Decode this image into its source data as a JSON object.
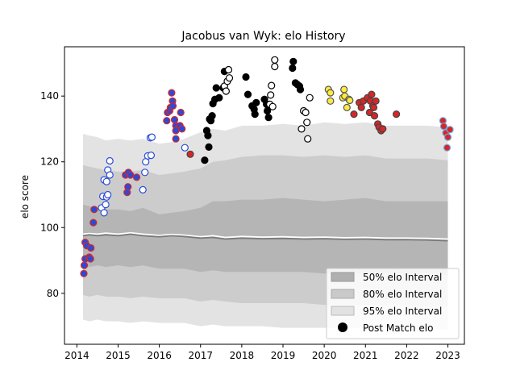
{
  "chart_data": {
    "type": "scatter",
    "title": "Jacobus van Wyk: elo History",
    "xlabel": "",
    "ylabel": "elo score",
    "xlim": [
      2013.7,
      2023.4
    ],
    "ylim": [
      64.5,
      155
    ],
    "xticks": [
      2014,
      2015,
      2016,
      2017,
      2018,
      2019,
      2020,
      2021,
      2022,
      2023
    ],
    "yticks": [
      80,
      100,
      120,
      140
    ],
    "grid": false,
    "legend_position": "lower-right",
    "legend": [
      {
        "label": "50% elo Interval",
        "color": "#b0b0b0"
      },
      {
        "label": "80% elo Interval",
        "color": "#c9c9c9"
      },
      {
        "label": "95% elo Interval",
        "color": "#e2e2e2"
      },
      {
        "label": "Post Match elo",
        "color": "#000000"
      }
    ],
    "bands": {
      "x": [
        2014.15,
        2014.3,
        2014.5,
        2014.7,
        2015.0,
        2015.3,
        2015.6,
        2016.0,
        2016.3,
        2016.6,
        2017.0,
        2017.3,
        2017.6,
        2018.0,
        2018.5,
        2019.0,
        2019.5,
        2020.0,
        2020.5,
        2021.0,
        2021.5,
        2022.0,
        2022.5,
        2023.0
      ],
      "p95_hi": [
        128.5,
        128,
        127.5,
        126.5,
        127,
        126.5,
        127,
        125.5,
        126,
        127,
        129,
        130,
        129.5,
        131,
        131,
        131.5,
        131,
        132,
        131.5,
        132,
        131,
        131,
        131,
        130.5
      ],
      "p80_hi": [
        119,
        118.5,
        118,
        117.5,
        117,
        117,
        117.5,
        116,
        116.5,
        117,
        118,
        120,
        120.5,
        121.5,
        122,
        122,
        121.5,
        122,
        121.5,
        122,
        121,
        121,
        121,
        120.5
      ],
      "p50_hi": [
        107,
        106.5,
        106,
        105.5,
        105.5,
        105,
        106,
        104,
        104.5,
        105,
        106,
        108,
        108,
        108.5,
        108.5,
        109,
        108.5,
        108,
        108.5,
        109,
        108,
        108,
        108,
        108
      ],
      "p50_lo": [
        88.5,
        88,
        88.5,
        88,
        88.5,
        88,
        88.5,
        87.5,
        87.5,
        87.5,
        86.5,
        87,
        86.5,
        86.5,
        86.5,
        86.5,
        86.5,
        86,
        86,
        86,
        86,
        86,
        86,
        85.5
      ],
      "p80_lo": [
        79.5,
        79,
        79.5,
        79,
        79,
        78.5,
        79,
        78.5,
        78.5,
        78.5,
        77.5,
        78,
        77.5,
        77,
        77,
        77,
        77,
        76.5,
        76.5,
        76.5,
        76.5,
        76,
        76,
        76
      ],
      "p95_lo": [
        72,
        71.5,
        72,
        71.5,
        71.5,
        71,
        71.5,
        71,
        71,
        71,
        70,
        70.5,
        70,
        70,
        70,
        69.5,
        69.5,
        69.5,
        69.5,
        69.5,
        69.5,
        69,
        69,
        69
      ],
      "median": [
        97.5,
        97.8,
        97.5,
        97.8,
        97.5,
        98,
        97.5,
        97.2,
        97.5,
        97.3,
        96.8,
        97,
        96.5,
        96.8,
        96.6,
        96.7,
        96.5,
        96.6,
        96.4,
        96.5,
        96.3,
        96.3,
        96.2,
        96.0
      ],
      "mean": [
        98,
        98.2,
        98,
        98.3,
        98,
        98.4,
        98,
        97.6,
        97.9,
        97.7,
        97.2,
        97.5,
        97,
        97.3,
        97.1,
        97.2,
        97,
        97.1,
        96.9,
        97,
        96.8,
        96.8,
        96.7,
        96.5
      ]
    },
    "series": [
      {
        "fill": "#2a4bd7",
        "stroke": "#d62728",
        "points": [
          [
            2014.17,
            86
          ],
          [
            2014.18,
            88.5
          ],
          [
            2014.2,
            90.5
          ],
          [
            2014.2,
            95.5
          ],
          [
            2014.24,
            94.5
          ],
          [
            2014.3,
            91
          ],
          [
            2014.33,
            90.5
          ],
          [
            2014.34,
            93.8
          ],
          [
            2014.4,
            101.5
          ],
          [
            2014.42,
            105.5
          ]
        ]
      },
      {
        "fill": "#ffffff",
        "stroke": "#2a4bd7",
        "points": [
          [
            2014.6,
            106
          ],
          [
            2014.63,
            109.5
          ],
          [
            2014.66,
            104.5
          ],
          [
            2014.7,
            107
          ],
          [
            2014.72,
            109.3
          ],
          [
            2014.75,
            110
          ],
          [
            2014.66,
            114.5
          ],
          [
            2014.72,
            114
          ],
          [
            2014.75,
            117.5
          ],
          [
            2014.8,
            116
          ],
          [
            2014.8,
            120.3
          ]
        ]
      },
      {
        "fill": "#2a4bd7",
        "stroke": "#d62728",
        "points": [
          [
            2015.18,
            116
          ],
          [
            2015.22,
            110.7
          ],
          [
            2015.24,
            112.4
          ],
          [
            2015.25,
            116.8
          ],
          [
            2015.3,
            116
          ],
          [
            2015.45,
            115.3
          ]
        ]
      },
      {
        "fill": "#ffffff",
        "stroke": "#2a4bd7",
        "points": [
          [
            2015.6,
            111.5
          ],
          [
            2015.65,
            116.8
          ],
          [
            2015.67,
            120
          ],
          [
            2015.72,
            121.8
          ],
          [
            2015.78,
            127.3
          ],
          [
            2015.8,
            122
          ],
          [
            2015.82,
            127.5
          ]
        ]
      },
      {
        "fill": "#2a4bd7",
        "stroke": "#d62728",
        "points": [
          [
            2016.18,
            132.5
          ],
          [
            2016.2,
            135
          ],
          [
            2016.25,
            135.5
          ],
          [
            2016.27,
            136.5
          ],
          [
            2016.3,
            141
          ],
          [
            2016.32,
            138.5
          ],
          [
            2016.33,
            137
          ],
          [
            2016.4,
            131
          ],
          [
            2016.37,
            132.8
          ],
          [
            2016.4,
            129.5
          ],
          [
            2016.4,
            127
          ],
          [
            2016.5,
            131
          ],
          [
            2016.52,
            135
          ],
          [
            2016.55,
            130
          ]
        ]
      },
      {
        "fill": "#ffffff",
        "stroke": "#2a4bd7",
        "points": [
          [
            2016.62,
            124.3
          ]
        ]
      },
      {
        "fill": "#d62728",
        "stroke": "#444444",
        "points": [
          [
            2016.75,
            122.3
          ]
        ]
      },
      {
        "fill": "#000000",
        "stroke": "#000000",
        "points": [
          [
            2017.1,
            120.5
          ],
          [
            2017.15,
            129.5
          ],
          [
            2017.18,
            128
          ],
          [
            2017.2,
            124.5
          ],
          [
            2017.22,
            133
          ],
          [
            2017.25,
            132.5
          ],
          [
            2017.28,
            134
          ],
          [
            2017.3,
            137.7
          ],
          [
            2017.35,
            139
          ],
          [
            2017.38,
            142.5
          ],
          [
            2017.45,
            139.5
          ],
          [
            2017.55,
            142.5
          ],
          [
            2017.58,
            147.5
          ]
        ]
      },
      {
        "fill": "#ffffff",
        "stroke": "#000000",
        "points": [
          [
            2017.58,
            143
          ],
          [
            2017.62,
            141.5
          ],
          [
            2017.65,
            144.5
          ],
          [
            2017.68,
            148
          ],
          [
            2017.7,
            145.5
          ]
        ]
      },
      {
        "fill": "#000000",
        "stroke": "#000000",
        "points": [
          [
            2018.1,
            145.8
          ],
          [
            2018.15,
            140.5
          ],
          [
            2018.25,
            137
          ],
          [
            2018.3,
            136
          ],
          [
            2018.32,
            134.5
          ],
          [
            2018.35,
            138
          ],
          [
            2018.55,
            139
          ],
          [
            2018.6,
            137.5
          ],
          [
            2018.62,
            135.5
          ],
          [
            2018.65,
            133.5
          ]
        ]
      },
      {
        "fill": "#ffffff",
        "stroke": "#000000",
        "points": [
          [
            2018.68,
            137.5
          ],
          [
            2018.7,
            140.3
          ],
          [
            2018.72,
            143.2
          ],
          [
            2018.75,
            136.8
          ],
          [
            2018.8,
            149
          ],
          [
            2018.8,
            151
          ]
        ]
      },
      {
        "fill": "#000000",
        "stroke": "#000000",
        "points": [
          [
            2019.23,
            148.5
          ],
          [
            2019.25,
            150.5
          ],
          [
            2019.3,
            144
          ],
          [
            2019.35,
            143.5
          ],
          [
            2019.4,
            143
          ],
          [
            2019.42,
            142
          ]
        ]
      },
      {
        "fill": "#ffffff",
        "stroke": "#000000",
        "points": [
          [
            2019.45,
            130
          ],
          [
            2019.5,
            135.5
          ],
          [
            2019.55,
            135
          ],
          [
            2019.58,
            132
          ],
          [
            2019.6,
            127
          ],
          [
            2019.65,
            139.5
          ]
        ]
      },
      {
        "fill": "#ffeb3b",
        "stroke": "#555555",
        "points": [
          [
            2020.1,
            142
          ],
          [
            2020.15,
            141
          ],
          [
            2020.15,
            138.5
          ],
          [
            2020.45,
            139.5
          ],
          [
            2020.48,
            142
          ],
          [
            2020.5,
            140
          ],
          [
            2020.55,
            136.5
          ],
          [
            2020.6,
            139
          ],
          [
            2020.62,
            138.7
          ]
        ]
      },
      {
        "fill": "#d62728",
        "stroke": "#444444",
        "points": [
          [
            2020.72,
            134.5
          ],
          [
            2020.85,
            138
          ],
          [
            2020.9,
            136.5
          ],
          [
            2020.95,
            138.5
          ],
          [
            2021.05,
            139.5
          ],
          [
            2021.1,
            135
          ],
          [
            2021.12,
            138.5
          ],
          [
            2021.15,
            140.5
          ],
          [
            2021.18,
            137
          ],
          [
            2021.2,
            136.5
          ],
          [
            2021.22,
            134
          ],
          [
            2021.25,
            138.5
          ],
          [
            2021.3,
            131.5
          ],
          [
            2021.33,
            130.5
          ],
          [
            2021.38,
            129.5
          ],
          [
            2021.42,
            130
          ],
          [
            2021.75,
            134.5
          ]
        ]
      },
      {
        "fill": "#d62728",
        "stroke": "#6fa8dc",
        "points": [
          [
            2022.88,
            132.5
          ],
          [
            2022.9,
            130.8
          ],
          [
            2022.95,
            128.8
          ],
          [
            2022.98,
            124.3
          ],
          [
            2023.0,
            127.5
          ],
          [
            2023.05,
            129.8
          ]
        ]
      }
    ]
  }
}
